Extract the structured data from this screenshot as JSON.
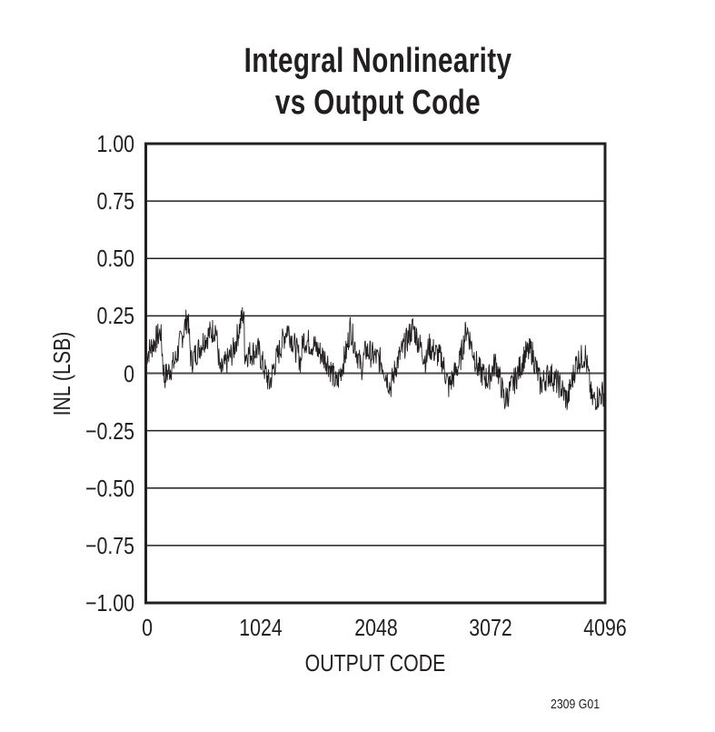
{
  "chart_data": {
    "type": "line",
    "title": "Integral Nonlinearity vs Output Code",
    "title_lines": [
      "Integral Nonlinearity",
      "vs Output Code"
    ],
    "xlabel": "OUTPUT CODE",
    "ylabel": "INL (LSB)",
    "xlim": [
      0,
      4096
    ],
    "ylim": [
      -1.0,
      1.0
    ],
    "x_ticks": [
      "0",
      "1024",
      "2048",
      "3072",
      "4096"
    ],
    "y_ticks": [
      "1.00",
      "0.75",
      "0.50",
      "0.25",
      "0",
      "−0.25",
      "−0.50",
      "−0.75",
      "−1.00"
    ],
    "y_tick_values": [
      1.0,
      0.75,
      0.5,
      0.25,
      0,
      -0.25,
      -0.5,
      -0.75,
      -1.0
    ],
    "grid": "horizontal",
    "legend": "none",
    "series": [
      {
        "name": "INL",
        "note": "approximate envelope keypoints (code, INL LSB); dense noisy sawtooth trace, ~±0.05 LSB jitter",
        "x": [
          0,
          128,
          160,
          256,
          370,
          400,
          520,
          620,
          660,
          780,
          870,
          880,
          1000,
          1100,
          1140,
          1260,
          1380,
          1400,
          1500,
          1620,
          1700,
          1790,
          1820,
          1920,
          1960,
          2100,
          2180,
          2240,
          2380,
          2500,
          2520,
          2640,
          2700,
          2800,
          2860,
          2960,
          3050,
          3120,
          3200,
          3300,
          3380,
          3440,
          3520,
          3600,
          3700,
          3760,
          3840,
          3920,
          3980,
          4096
        ],
        "values": [
          0.08,
          0.18,
          -0.02,
          0.05,
          0.25,
          0.05,
          0.15,
          0.2,
          0.0,
          0.1,
          0.27,
          0.08,
          0.1,
          -0.05,
          0.03,
          0.2,
          0.05,
          0.15,
          0.12,
          0.05,
          -0.05,
          0.1,
          0.2,
          0.02,
          0.1,
          0.05,
          -0.06,
          0.05,
          0.2,
          0.05,
          0.12,
          0.06,
          -0.06,
          0.05,
          0.2,
          0.02,
          -0.03,
          0.05,
          -0.12,
          -0.02,
          0.08,
          0.1,
          -0.05,
          0.0,
          -0.06,
          -0.12,
          0.05,
          0.08,
          -0.12,
          -0.08
        ]
      }
    ]
  },
  "figure_id": "2309 G01",
  "colors": {
    "ink": "#231f20",
    "background": "#ffffff"
  }
}
